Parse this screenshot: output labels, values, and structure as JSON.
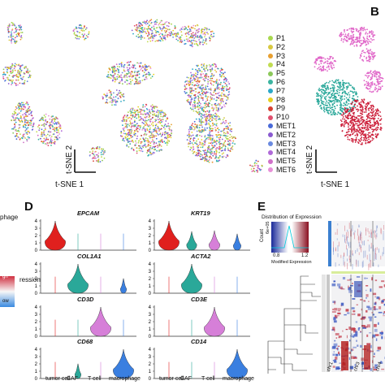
{
  "panels": {
    "B": "B",
    "D": "D",
    "E": "E"
  },
  "tsne_axes": {
    "x": "t-SNE 1",
    "y": "t-SNE 2"
  },
  "legend": [
    {
      "label": "P1",
      "color": "#a8d84e"
    },
    {
      "label": "P2",
      "color": "#d8c840"
    },
    {
      "label": "P3",
      "color": "#e8a030"
    },
    {
      "label": "P4",
      "color": "#c0dc50"
    },
    {
      "label": "P5",
      "color": "#8cc85a"
    },
    {
      "label": "P6",
      "color": "#3cb4a0"
    },
    {
      "label": "P7",
      "color": "#2aa8c8"
    },
    {
      "label": "P8",
      "color": "#e8d020"
    },
    {
      "label": "P9",
      "color": "#d84030"
    },
    {
      "label": "P10",
      "color": "#e0506e"
    },
    {
      "label": "MET1",
      "color": "#4a6ad8"
    },
    {
      "label": "MET2",
      "color": "#8a5ad0"
    },
    {
      "label": "MET3",
      "color": "#6a8ae0"
    },
    {
      "label": "MET4",
      "color": "#b06ad8"
    },
    {
      "label": "MET5",
      "color": "#d070c8"
    },
    {
      "label": "MET6",
      "color": "#e890d8"
    }
  ],
  "partial_left": {
    "top_text": "phage",
    "expr_label": "ression",
    "tick_hi": "gh",
    "tick_lo": "ow"
  },
  "violin": {
    "categories": [
      "tumor cell",
      "CAF",
      "T cell",
      "macrophage"
    ],
    "genes": [
      {
        "name": "EPCAM",
        "yticks": [
          "0",
          "1",
          "2",
          "3",
          "4"
        ]
      },
      {
        "name": "KRT19",
        "yticks": [
          "0",
          "1",
          "2",
          "3",
          "4"
        ]
      },
      {
        "name": "COL1A1",
        "yticks": [
          "0",
          "1",
          "2",
          "3",
          "4"
        ]
      },
      {
        "name": "ACTA2",
        "yticks": [
          "0",
          "1",
          "2",
          "3",
          "4"
        ]
      },
      {
        "name": "CD3D",
        "yticks": [
          "0",
          "1",
          "2",
          "3",
          "4"
        ]
      },
      {
        "name": "CD3E",
        "yticks": [
          "0",
          "1",
          "2",
          "3",
          "4"
        ]
      },
      {
        "name": "CD68",
        "yticks": [
          "0",
          "1",
          "2",
          "3",
          "4"
        ]
      },
      {
        "name": "CD14",
        "yticks": [
          "0",
          "1",
          "2",
          "3",
          "4"
        ]
      }
    ]
  },
  "colorkey": {
    "title": "Distribution of Expression",
    "ylabel": "Count",
    "ytick": "6e+05",
    "xticks": [
      "0.8",
      "1.2"
    ],
    "xlabel": "Modified Expression"
  },
  "chromosomes": [
    "chr1",
    "chr3",
    "chr4"
  ]
}
